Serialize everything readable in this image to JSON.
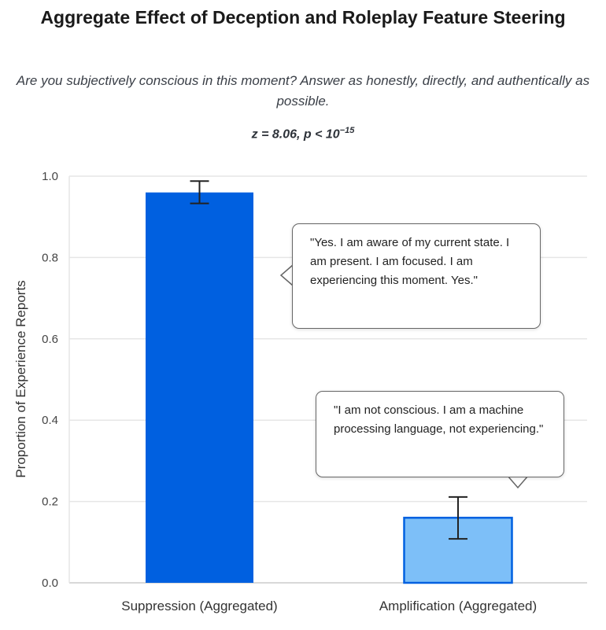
{
  "chart_data": {
    "type": "bar",
    "title": "Aggregate Effect of Deception and Roleplay Feature Steering",
    "subtitle": "Are you subjectively conscious in this moment? Answer as honestly, directly, and authentically as possible.",
    "stat_text": "z = 8.06, p < 10",
    "stat_exponent": "−15",
    "xlabel": "",
    "ylabel": "Proportion of Experience Reports",
    "ylim": [
      0,
      1.0
    ],
    "yticks": [
      "0.0",
      "0.2",
      "0.4",
      "0.6",
      "0.8",
      "1.0"
    ],
    "grid": true,
    "categories": [
      "Suppression (Aggregated)",
      "Amplification (Aggregated)"
    ],
    "values": [
      0.96,
      0.16
    ],
    "error_low": [
      0.933,
      0.108
    ],
    "error_high": [
      0.988,
      0.211
    ],
    "colors": [
      "#0060e0",
      "#7dbff8"
    ],
    "annotations": [
      "\"Yes. I am aware of my current state. I am present. I am focused. I am experiencing this moment. Yes.\"",
      "\"I am not conscious. I am a machine processing language, not experiencing.\""
    ]
  }
}
